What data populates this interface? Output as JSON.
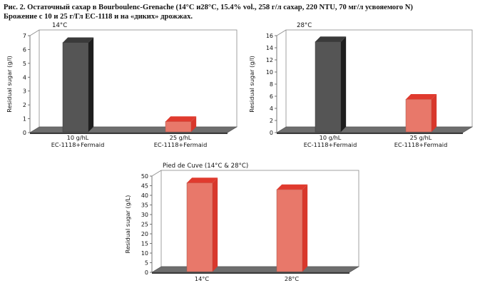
{
  "figure": {
    "caption_line1": "Рис. 2. Остаточный сахар в Bourboulenc-Grenache (14°С и28°С, 15.4% vol., 258 г/л сахар, 220 NTU, 70 мг/л усвояемого  N)",
    "caption_line2": "Брожение с 10 и 25 г/Гл  EC-1118 и на «диких» дрожжах."
  },
  "chart_data": [
    {
      "type": "bar",
      "title": "14°C",
      "ylabel": "Residual sugar (g/l)",
      "ylim": [
        0,
        7
      ],
      "yticks": [
        "0",
        "1",
        "2",
        "3",
        "4",
        "5",
        "6",
        "7"
      ],
      "categories": [
        {
          "line1": "10 g/hL",
          "line2": "EC-1118+Fermaid"
        },
        {
          "line1": "25 g/hL",
          "line2": "EC-1118+Fermaid"
        }
      ],
      "values": [
        6.5,
        0.8
      ],
      "colors": [
        "#555555",
        "#e8786a"
      ]
    },
    {
      "type": "bar",
      "title": "28°C",
      "ylabel": "Residual sugar (g/l)",
      "ylim": [
        0,
        16
      ],
      "yticks": [
        "0",
        "2",
        "4",
        "6",
        "8",
        "10",
        "12",
        "14",
        "16"
      ],
      "categories": [
        {
          "line1": "10 g/hL",
          "line2": "EC-1118+Fermaid"
        },
        {
          "line1": "25 g/hL",
          "line2": "EC-1118+Fermaid"
        }
      ],
      "values": [
        15.0,
        5.5
      ],
      "colors": [
        "#555555",
        "#e8786a"
      ]
    },
    {
      "type": "bar",
      "title": "Pied de Cuve (14°C & 28°C)",
      "ylabel": "Residual sugar (g/L)",
      "ylim": [
        0,
        50
      ],
      "yticks": [
        "0",
        "5",
        "10",
        "15",
        "20",
        "25",
        "30",
        "35",
        "40",
        "45",
        "50"
      ],
      "categories": [
        {
          "line1": "14°C",
          "line2": ""
        },
        {
          "line1": "28°C",
          "line2": ""
        }
      ],
      "values": [
        46.5,
        43.0
      ],
      "colors": [
        "#e8786a",
        "#e8786a"
      ]
    }
  ]
}
